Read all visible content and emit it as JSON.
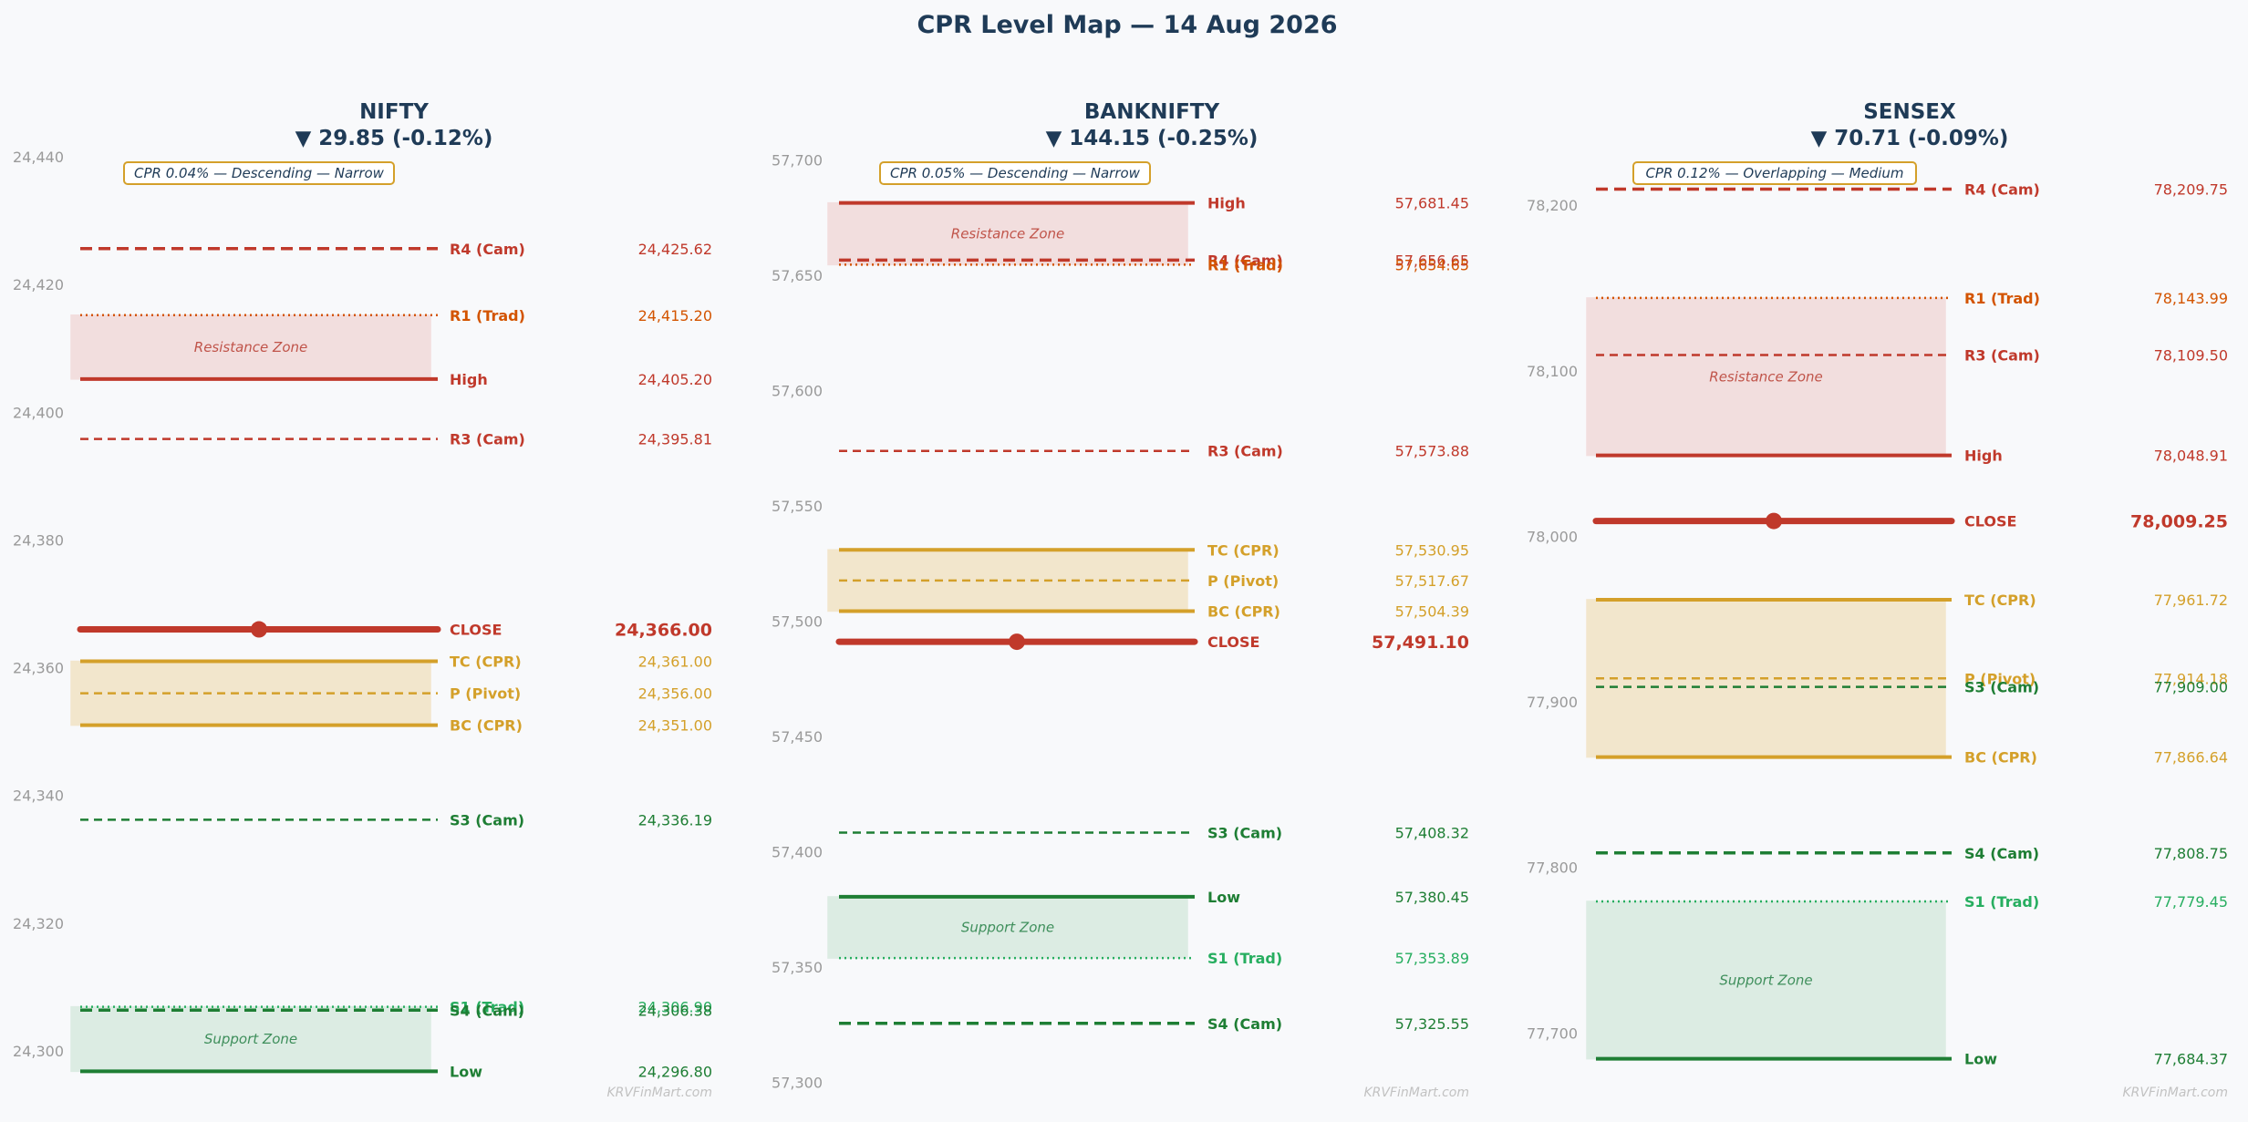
{
  "title": "CPR Level Map — 14 Aug 2026",
  "colors": {
    "resistance": "#c0392b",
    "trad_resistance": "#d35400",
    "cpr": "#d4a02a",
    "support": "#1e7e34",
    "trad_support": "#27ae60",
    "close": "#c0392b",
    "resistance_zone_fill": "#f2dede",
    "support_zone_fill": "#dcece3",
    "cpr_zone_fill": "#f2e6cc",
    "title": "#1f3b57",
    "tick": "#9a9a9a"
  },
  "chart_data": [
    {
      "type": "level-map",
      "title": "NIFTY",
      "subtitle": "▼ 29.85 (-0.12%)",
      "info": "CPR 0.04% — Descending — Narrow",
      "ylim": [
        24294,
        24442
      ],
      "yticks": [
        24300,
        24320,
        24340,
        24360,
        24380,
        24400,
        24420,
        24440
      ],
      "ytick_labels": [
        "24,300",
        "24,320",
        "24,340",
        "24,360",
        "24,380",
        "24,400",
        "24,420",
        "24,440"
      ],
      "zones": [
        {
          "label": "Resistance Zone",
          "kind": "resistance",
          "low": 24405.2,
          "high": 24415.2
        },
        {
          "label": "",
          "kind": "cpr",
          "low": 24351.0,
          "high": 24361.0
        },
        {
          "label": "Support Zone",
          "kind": "support",
          "low": 24296.8,
          "high": 24306.9
        }
      ],
      "levels": [
        {
          "name": "R4 (Cam)",
          "value": 24425.62,
          "label": "24,425.62",
          "style": "dashed",
          "kind": "resistance"
        },
        {
          "name": "R1 (Trad)",
          "value": 24415.2,
          "label": "24,415.20",
          "style": "dotted",
          "kind": "trad_resistance"
        },
        {
          "name": "High",
          "value": 24405.2,
          "label": "24,405.20",
          "style": "solid",
          "kind": "resistance"
        },
        {
          "name": "R3 (Cam)",
          "value": 24395.81,
          "label": "24,395.81",
          "style": "dashed-thin",
          "kind": "resistance"
        },
        {
          "name": "CLOSE",
          "value": 24366.0,
          "label": "24,366.00",
          "style": "close",
          "kind": "close"
        },
        {
          "name": "TC (CPR)",
          "value": 24361.0,
          "label": "24,361.00",
          "style": "solid",
          "kind": "cpr"
        },
        {
          "name": "P (Pivot)",
          "value": 24356.0,
          "label": "24,356.00",
          "style": "dashed-thin",
          "kind": "cpr"
        },
        {
          "name": "BC (CPR)",
          "value": 24351.0,
          "label": "24,351.00",
          "style": "solid",
          "kind": "cpr"
        },
        {
          "name": "S3 (Cam)",
          "value": 24336.19,
          "label": "24,336.19",
          "style": "dashed-thin",
          "kind": "support"
        },
        {
          "name": "S1 (Trad)",
          "value": 24306.9,
          "label": "24,306.90",
          "style": "dotted",
          "kind": "trad_support"
        },
        {
          "name": "S4 (Cam)",
          "value": 24306.38,
          "label": "24,306.38",
          "style": "dashed",
          "kind": "support"
        },
        {
          "name": "Low",
          "value": 24296.8,
          "label": "24,296.80",
          "style": "solid",
          "kind": "support"
        }
      ],
      "watermark": "KRVFinMart.com"
    },
    {
      "type": "level-map",
      "title": "BANKNIFTY",
      "subtitle": "▼ 144.15 (-0.25%)",
      "info": "CPR 0.05% — Descending — Narrow",
      "ylim": [
        57297,
        57707
      ],
      "yticks": [
        57300,
        57350,
        57400,
        57450,
        57500,
        57550,
        57600,
        57650,
        57700
      ],
      "ytick_labels": [
        "57,300",
        "57,350",
        "57,400",
        "57,450",
        "57,500",
        "57,550",
        "57,600",
        "57,650",
        "57,700"
      ],
      "zones": [
        {
          "label": "Resistance Zone",
          "kind": "resistance",
          "low": 57654.65,
          "high": 57681.45
        },
        {
          "label": "",
          "kind": "cpr",
          "low": 57504.39,
          "high": 57530.95
        },
        {
          "label": "Support Zone",
          "kind": "support",
          "low": 57353.89,
          "high": 57380.45
        }
      ],
      "levels": [
        {
          "name": "High",
          "value": 57681.45,
          "label": "57,681.45",
          "style": "solid",
          "kind": "resistance"
        },
        {
          "name": "R4 (Cam)",
          "value": 57656.65,
          "label": "57,656.65",
          "style": "dashed",
          "kind": "resistance"
        },
        {
          "name": "R1 (Trad)",
          "value": 57654.65,
          "label": "57,654.65",
          "style": "dotted",
          "kind": "trad_resistance"
        },
        {
          "name": "R3 (Cam)",
          "value": 57573.88,
          "label": "57,573.88",
          "style": "dashed-thin",
          "kind": "resistance"
        },
        {
          "name": "TC (CPR)",
          "value": 57530.95,
          "label": "57,530.95",
          "style": "solid",
          "kind": "cpr"
        },
        {
          "name": "P (Pivot)",
          "value": 57517.67,
          "label": "57,517.67",
          "style": "dashed-thin",
          "kind": "cpr"
        },
        {
          "name": "BC (CPR)",
          "value": 57504.39,
          "label": "57,504.39",
          "style": "solid",
          "kind": "cpr"
        },
        {
          "name": "CLOSE",
          "value": 57491.1,
          "label": "57,491.10",
          "style": "close",
          "kind": "close"
        },
        {
          "name": "S3 (Cam)",
          "value": 57408.32,
          "label": "57,408.32",
          "style": "dashed-thin",
          "kind": "support"
        },
        {
          "name": "Low",
          "value": 57380.45,
          "label": "57,380.45",
          "style": "solid",
          "kind": "support"
        },
        {
          "name": "S1 (Trad)",
          "value": 57353.89,
          "label": "57,353.89",
          "style": "dotted",
          "kind": "trad_support"
        },
        {
          "name": "S4 (Cam)",
          "value": 57325.55,
          "label": "57,325.55",
          "style": "dashed",
          "kind": "support"
        }
      ],
      "watermark": "KRVFinMart.com"
    },
    {
      "type": "level-map",
      "title": "SENSEX",
      "subtitle": "▼ 70.71 (-0.09%)",
      "info": "CPR 0.12% — Overlapping — Medium",
      "ylim": [
        77666,
        78237
      ],
      "yticks": [
        77700,
        77800,
        77900,
        78000,
        78100,
        78200
      ],
      "ytick_labels": [
        "77,700",
        "77,800",
        "77,900",
        "78,000",
        "78,100",
        "78,200"
      ],
      "zones": [
        {
          "label": "Resistance Zone",
          "kind": "resistance",
          "low": 78048.91,
          "high": 78143.99
        },
        {
          "label": "",
          "kind": "cpr",
          "low": 77866.64,
          "high": 77961.72
        },
        {
          "label": "Support Zone",
          "kind": "support",
          "low": 77684.37,
          "high": 77779.45
        }
      ],
      "levels": [
        {
          "name": "R4 (Cam)",
          "value": 78209.75,
          "label": "78,209.75",
          "style": "dashed",
          "kind": "resistance"
        },
        {
          "name": "R1 (Trad)",
          "value": 78143.99,
          "label": "78,143.99",
          "style": "dotted",
          "kind": "trad_resistance"
        },
        {
          "name": "R3 (Cam)",
          "value": 78109.5,
          "label": "78,109.50",
          "style": "dashed-thin",
          "kind": "resistance"
        },
        {
          "name": "High",
          "value": 78048.91,
          "label": "78,048.91",
          "style": "solid",
          "kind": "resistance"
        },
        {
          "name": "CLOSE",
          "value": 78009.25,
          "label": "78,009.25",
          "style": "close",
          "kind": "close"
        },
        {
          "name": "TC (CPR)",
          "value": 77961.72,
          "label": "77,961.72",
          "style": "solid",
          "kind": "cpr"
        },
        {
          "name": "P (Pivot)",
          "value": 77914.18,
          "label": "77,914.18",
          "style": "dashed-thin",
          "kind": "cpr"
        },
        {
          "name": "S3 (Cam)",
          "value": 77909.0,
          "label": "77,909.00",
          "style": "dashed-thin",
          "kind": "support"
        },
        {
          "name": "BC (CPR)",
          "value": 77866.64,
          "label": "77,866.64",
          "style": "solid",
          "kind": "cpr"
        },
        {
          "name": "S4 (Cam)",
          "value": 77808.75,
          "label": "77,808.75",
          "style": "dashed",
          "kind": "support"
        },
        {
          "name": "S1 (Trad)",
          "value": 77779.45,
          "label": "77,779.45",
          "style": "dotted",
          "kind": "trad_support"
        },
        {
          "name": "Low",
          "value": 77684.37,
          "label": "77,684.37",
          "style": "solid",
          "kind": "support"
        }
      ],
      "watermark": "KRVFinMart.com"
    }
  ]
}
